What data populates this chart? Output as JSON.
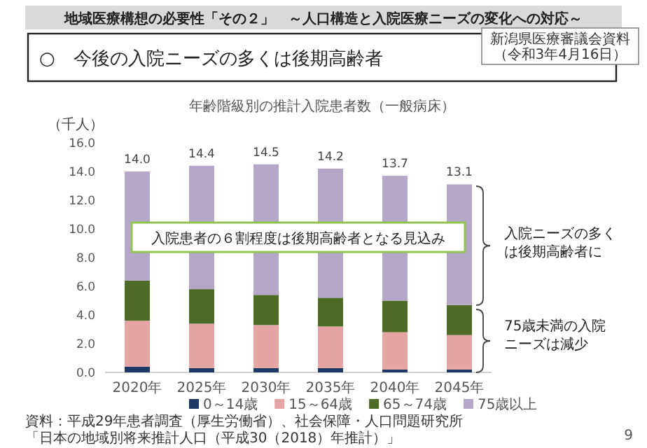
{
  "chart_data": {
    "type": "bar",
    "stacked": true,
    "title": "年齢階級別の推計入院患者数（一般病床）",
    "ylabel": "（千人）",
    "categories": [
      "2020年",
      "2025年",
      "2030年",
      "2035年",
      "2040年",
      "2045年"
    ],
    "series": [
      {
        "name": "0～14歳",
        "color": "#1f3864",
        "values": [
          0.4,
          0.3,
          0.3,
          0.3,
          0.2,
          0.2
        ]
      },
      {
        "name": "15～64歳",
        "color": "#e6a5a5",
        "values": [
          3.2,
          3.1,
          3.0,
          2.9,
          2.6,
          2.4
        ]
      },
      {
        "name": "65～74歳",
        "color": "#4e6b25",
        "values": [
          2.8,
          2.4,
          2.1,
          2.0,
          2.2,
          2.1
        ]
      },
      {
        "name": "75歳以上",
        "color": "#b4a7c8",
        "values": [
          7.6,
          8.6,
          9.1,
          9.0,
          8.7,
          8.4
        ]
      }
    ],
    "totals": [
      "14.0",
      "14.4",
      "14.5",
      "14.2",
      "13.7",
      "13.1"
    ],
    "ylim": [
      0,
      16
    ],
    "yticks": [
      {
        "value": 0,
        "label": "0.0"
      },
      {
        "value": 2,
        "label": "2.0"
      },
      {
        "value": 4,
        "label": "4.0"
      },
      {
        "value": 6,
        "label": "6.0"
      },
      {
        "value": 8,
        "label": "8.0"
      },
      {
        "value": 10,
        "label": "10.0"
      },
      {
        "value": 12,
        "label": "12.0"
      },
      {
        "value": 14,
        "label": "14.0"
      },
      {
        "value": 16,
        "label": "16.0"
      }
    ],
    "legend": "bottom",
    "annotations": [
      "地域医療構想の必要性「その２」　～人口構造と入院医療ニーズの変化への対応～",
      "○　今後の入院ニーズの多くは後期高齢者",
      "新潟県医療審議会資料",
      "（令和3年4月16日）",
      "入院患者の６割程度は後期高齢者となる見込み",
      "入院ニーズの多く",
      "は後期高齢者に",
      "75歳未満の入院",
      "ニーズは減少",
      "資料：平成29年患者調査（厚生労働省）、社会保障・人口問題研究所",
      "「日本の地域別将来推計人口（平成30（2018）年推計）」",
      "9"
    ]
  }
}
